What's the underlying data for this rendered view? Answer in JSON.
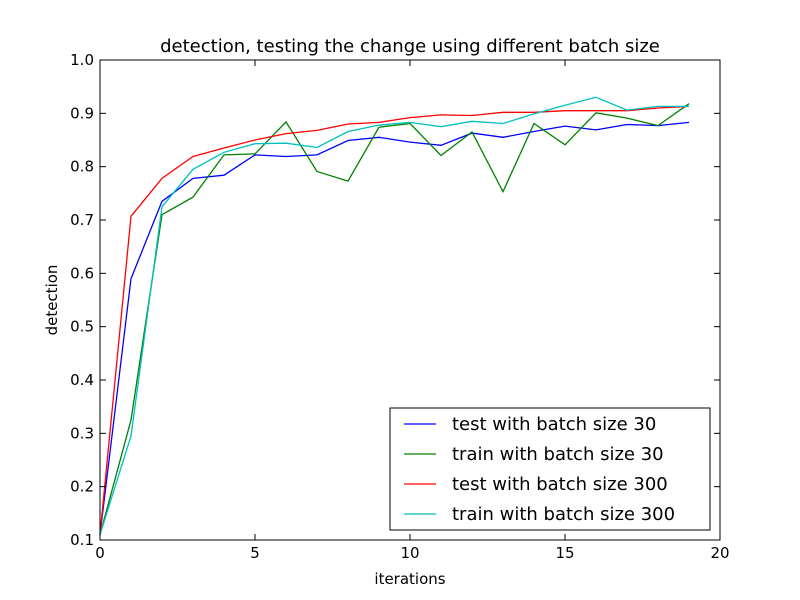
{
  "chart_data": {
    "type": "line",
    "title": "detection, testing the change using different batch size",
    "xlabel": "iterations",
    "ylabel": "detection",
    "xlim": [
      0,
      20
    ],
    "ylim": [
      0.1,
      1.0
    ],
    "xticks": [
      "0",
      "5",
      "10",
      "15",
      "20"
    ],
    "yticks": [
      "0.1",
      "0.2",
      "0.3",
      "0.4",
      "0.5",
      "0.6",
      "0.7",
      "0.8",
      "0.9",
      "1.0"
    ],
    "grid": false,
    "legend_position": "lower-right",
    "x": [
      0,
      1,
      2,
      3,
      4,
      5,
      6,
      7,
      8,
      9,
      10,
      11,
      12,
      13,
      14,
      15,
      16,
      17,
      18,
      19
    ],
    "series": [
      {
        "name": "test with batch size 30",
        "color": "#0000ff",
        "values": [
          0.11,
          0.59,
          0.735,
          0.778,
          0.784,
          0.822,
          0.819,
          0.822,
          0.849,
          0.855,
          0.846,
          0.84,
          0.863,
          0.855,
          0.866,
          0.876,
          0.869,
          0.879,
          0.877,
          0.883
        ]
      },
      {
        "name": "train with batch size 30",
        "color": "#008000",
        "values": [
          0.11,
          0.325,
          0.71,
          0.743,
          0.822,
          0.824,
          0.884,
          0.791,
          0.773,
          0.874,
          0.881,
          0.821,
          0.865,
          0.753,
          0.881,
          0.841,
          0.901,
          0.891,
          0.877,
          0.918
        ]
      },
      {
        "name": "test with batch size 300",
        "color": "#ff0000",
        "values": [
          0.11,
          0.707,
          0.778,
          0.819,
          0.835,
          0.85,
          0.862,
          0.868,
          0.88,
          0.883,
          0.892,
          0.897,
          0.896,
          0.902,
          0.902,
          0.905,
          0.905,
          0.905,
          0.91,
          0.913
        ]
      },
      {
        "name": "train with batch size 300",
        "color": "#00bfbf",
        "values": [
          0.11,
          0.295,
          0.725,
          0.795,
          0.827,
          0.843,
          0.844,
          0.836,
          0.866,
          0.878,
          0.883,
          0.875,
          0.885,
          0.881,
          0.899,
          0.915,
          0.93,
          0.906,
          0.913,
          0.913
        ]
      }
    ]
  }
}
